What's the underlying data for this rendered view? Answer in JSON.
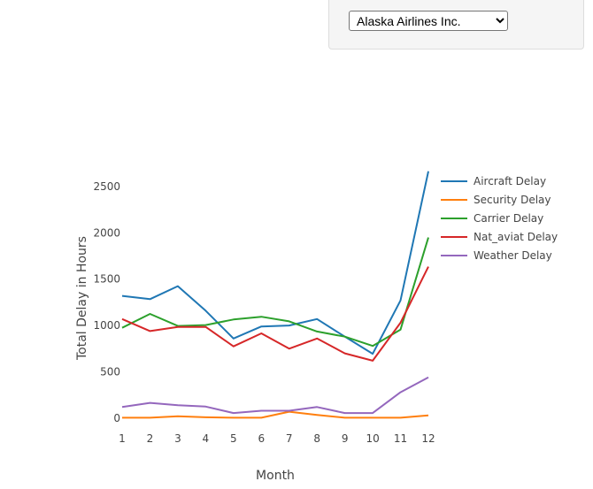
{
  "controls": {
    "airline_selected": "Alaska Airlines Inc."
  },
  "chart_data": {
    "type": "line",
    "title": "",
    "xlabel": "Month",
    "ylabel": "Total Delay in Hours",
    "x": [
      1,
      2,
      3,
      4,
      5,
      6,
      7,
      8,
      9,
      10,
      11,
      12
    ],
    "xticks": [
      1,
      2,
      3,
      4,
      5,
      6,
      7,
      8,
      9,
      10,
      11,
      12
    ],
    "yticks": [
      0,
      500,
      1000,
      1500,
      2000,
      2500
    ],
    "ylim": [
      -20,
      2700
    ],
    "grid": false,
    "legend_position": "right",
    "series": [
      {
        "name": "Aircraft Delay",
        "color": "#1f77b4",
        "values": [
          1320,
          1285,
          1425,
          1160,
          860,
          990,
          1000,
          1070,
          880,
          695,
          1270,
          2665
        ]
      },
      {
        "name": "Security Delay",
        "color": "#ff7f0e",
        "values": [
          5,
          5,
          20,
          10,
          5,
          5,
          70,
          35,
          5,
          5,
          5,
          30
        ]
      },
      {
        "name": "Carrier Delay",
        "color": "#2ca02c",
        "values": [
          975,
          1125,
          995,
          1005,
          1065,
          1095,
          1045,
          935,
          880,
          780,
          955,
          1950
        ]
      },
      {
        "name": "Nat_aviat Delay",
        "color": "#d62728",
        "values": [
          1070,
          940,
          985,
          985,
          775,
          915,
          750,
          860,
          700,
          620,
          1030,
          1635
        ]
      },
      {
        "name": "Weather Delay",
        "color": "#9467bd",
        "values": [
          120,
          165,
          140,
          125,
          55,
          80,
          80,
          120,
          55,
          55,
          280,
          440
        ]
      }
    ]
  }
}
